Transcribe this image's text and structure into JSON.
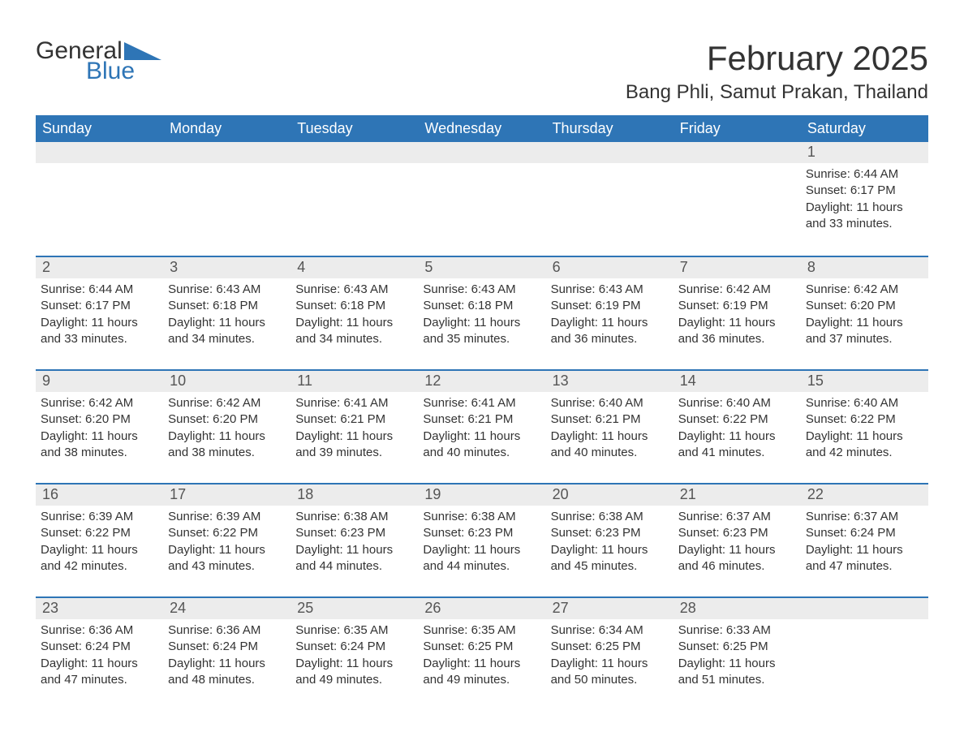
{
  "logo": {
    "text1": "General",
    "text2": "Blue",
    "color1": "#333333",
    "color2": "#2e75b6"
  },
  "title": "February 2025",
  "location": "Bang Phli, Samut Prakan, Thailand",
  "header_bg": "#2e75b6",
  "header_fg": "#ffffff",
  "daynum_bg": "#ececec",
  "border_color": "#2e75b6",
  "text_color": "#333333",
  "weekdays": [
    "Sunday",
    "Monday",
    "Tuesday",
    "Wednesday",
    "Thursday",
    "Friday",
    "Saturday"
  ],
  "weeks": [
    [
      {
        "n": "",
        "sr": "",
        "ss": "",
        "dl": ""
      },
      {
        "n": "",
        "sr": "",
        "ss": "",
        "dl": ""
      },
      {
        "n": "",
        "sr": "",
        "ss": "",
        "dl": ""
      },
      {
        "n": "",
        "sr": "",
        "ss": "",
        "dl": ""
      },
      {
        "n": "",
        "sr": "",
        "ss": "",
        "dl": ""
      },
      {
        "n": "",
        "sr": "",
        "ss": "",
        "dl": ""
      },
      {
        "n": "1",
        "sr": "6:44 AM",
        "ss": "6:17 PM",
        "dl": "11 hours and 33 minutes."
      }
    ],
    [
      {
        "n": "2",
        "sr": "6:44 AM",
        "ss": "6:17 PM",
        "dl": "11 hours and 33 minutes."
      },
      {
        "n": "3",
        "sr": "6:43 AM",
        "ss": "6:18 PM",
        "dl": "11 hours and 34 minutes."
      },
      {
        "n": "4",
        "sr": "6:43 AM",
        "ss": "6:18 PM",
        "dl": "11 hours and 34 minutes."
      },
      {
        "n": "5",
        "sr": "6:43 AM",
        "ss": "6:18 PM",
        "dl": "11 hours and 35 minutes."
      },
      {
        "n": "6",
        "sr": "6:43 AM",
        "ss": "6:19 PM",
        "dl": "11 hours and 36 minutes."
      },
      {
        "n": "7",
        "sr": "6:42 AM",
        "ss": "6:19 PM",
        "dl": "11 hours and 36 minutes."
      },
      {
        "n": "8",
        "sr": "6:42 AM",
        "ss": "6:20 PM",
        "dl": "11 hours and 37 minutes."
      }
    ],
    [
      {
        "n": "9",
        "sr": "6:42 AM",
        "ss": "6:20 PM",
        "dl": "11 hours and 38 minutes."
      },
      {
        "n": "10",
        "sr": "6:42 AM",
        "ss": "6:20 PM",
        "dl": "11 hours and 38 minutes."
      },
      {
        "n": "11",
        "sr": "6:41 AM",
        "ss": "6:21 PM",
        "dl": "11 hours and 39 minutes."
      },
      {
        "n": "12",
        "sr": "6:41 AM",
        "ss": "6:21 PM",
        "dl": "11 hours and 40 minutes."
      },
      {
        "n": "13",
        "sr": "6:40 AM",
        "ss": "6:21 PM",
        "dl": "11 hours and 40 minutes."
      },
      {
        "n": "14",
        "sr": "6:40 AM",
        "ss": "6:22 PM",
        "dl": "11 hours and 41 minutes."
      },
      {
        "n": "15",
        "sr": "6:40 AM",
        "ss": "6:22 PM",
        "dl": "11 hours and 42 minutes."
      }
    ],
    [
      {
        "n": "16",
        "sr": "6:39 AM",
        "ss": "6:22 PM",
        "dl": "11 hours and 42 minutes."
      },
      {
        "n": "17",
        "sr": "6:39 AM",
        "ss": "6:22 PM",
        "dl": "11 hours and 43 minutes."
      },
      {
        "n": "18",
        "sr": "6:38 AM",
        "ss": "6:23 PM",
        "dl": "11 hours and 44 minutes."
      },
      {
        "n": "19",
        "sr": "6:38 AM",
        "ss": "6:23 PM",
        "dl": "11 hours and 44 minutes."
      },
      {
        "n": "20",
        "sr": "6:38 AM",
        "ss": "6:23 PM",
        "dl": "11 hours and 45 minutes."
      },
      {
        "n": "21",
        "sr": "6:37 AM",
        "ss": "6:23 PM",
        "dl": "11 hours and 46 minutes."
      },
      {
        "n": "22",
        "sr": "6:37 AM",
        "ss": "6:24 PM",
        "dl": "11 hours and 47 minutes."
      }
    ],
    [
      {
        "n": "23",
        "sr": "6:36 AM",
        "ss": "6:24 PM",
        "dl": "11 hours and 47 minutes."
      },
      {
        "n": "24",
        "sr": "6:36 AM",
        "ss": "6:24 PM",
        "dl": "11 hours and 48 minutes."
      },
      {
        "n": "25",
        "sr": "6:35 AM",
        "ss": "6:24 PM",
        "dl": "11 hours and 49 minutes."
      },
      {
        "n": "26",
        "sr": "6:35 AM",
        "ss": "6:25 PM",
        "dl": "11 hours and 49 minutes."
      },
      {
        "n": "27",
        "sr": "6:34 AM",
        "ss": "6:25 PM",
        "dl": "11 hours and 50 minutes."
      },
      {
        "n": "28",
        "sr": "6:33 AM",
        "ss": "6:25 PM",
        "dl": "11 hours and 51 minutes."
      },
      {
        "n": "",
        "sr": "",
        "ss": "",
        "dl": ""
      }
    ]
  ],
  "labels": {
    "sunrise": "Sunrise: ",
    "sunset": "Sunset: ",
    "daylight": "Daylight: "
  }
}
